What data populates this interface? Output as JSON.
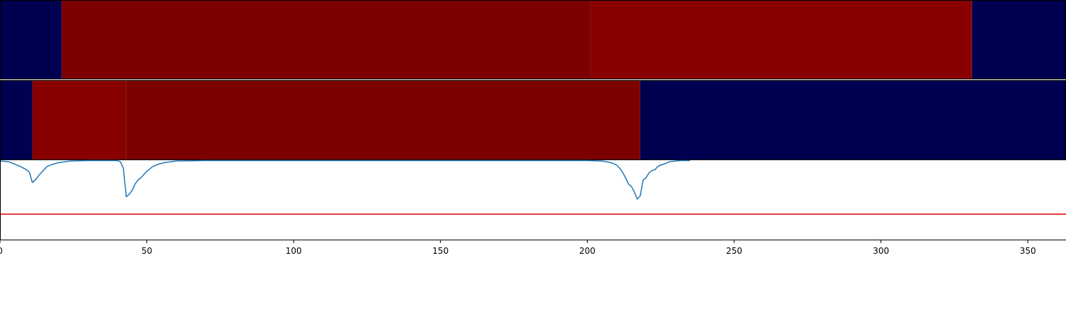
{
  "chart_data": [
    {
      "type": "heatmap",
      "xlim": [
        0,
        363
      ],
      "colors": {
        "low": "#000050",
        "high": "#880000",
        "mid": "#7c0000"
      },
      "segments": [
        {
          "x0": 0,
          "x1": 21,
          "color": "#000050"
        },
        {
          "x0": 21,
          "x1": 201,
          "color": "#7c0000"
        },
        {
          "x0": 201,
          "x1": 331,
          "color": "#880000"
        },
        {
          "x0": 331,
          "x1": 363,
          "color": "#000050"
        }
      ]
    },
    {
      "type": "heatmap",
      "xlim": [
        0,
        363
      ],
      "segments": [
        {
          "x0": 0,
          "x1": 11,
          "color": "#000050"
        },
        {
          "x0": 11,
          "x1": 43,
          "color": "#880000"
        },
        {
          "x0": 43,
          "x1": 218,
          "color": "#7c0000"
        },
        {
          "x0": 218,
          "x1": 363,
          "color": "#000050"
        }
      ]
    },
    {
      "type": "line",
      "xlim": [
        0,
        363
      ],
      "ylim": [
        -1.0,
        0.0
      ],
      "grid": false,
      "xticks": [
        0,
        50,
        100,
        150,
        200,
        250,
        300,
        350
      ],
      "xtick_labels": [
        "0",
        "50",
        "100",
        "150",
        "200",
        "250",
        "300",
        "350"
      ],
      "series": [
        {
          "color": "#1f77b4",
          "x": [
            0,
            3,
            5,
            7,
            9,
            10,
            11,
            12,
            13,
            14,
            15,
            16,
            18,
            20,
            24,
            30,
            40,
            41,
            42,
            43,
            44,
            45,
            46,
            47,
            48,
            49,
            50,
            51,
            52,
            54,
            56,
            60,
            70,
            100,
            150,
            170,
            200,
            205,
            208,
            210,
            211,
            212,
            213,
            214,
            215,
            216,
            217,
            218,
            219,
            220,
            221,
            222,
            223,
            224,
            225,
            226,
            228,
            230,
            232,
            235
          ],
          "y": [
            -0.01,
            -0.02,
            -0.05,
            -0.08,
            -0.12,
            -0.15,
            -0.28,
            -0.25,
            -0.2,
            -0.16,
            -0.12,
            -0.08,
            -0.05,
            -0.03,
            -0.01,
            -0.005,
            -0.005,
            -0.02,
            -0.1,
            -0.46,
            -0.43,
            -0.38,
            -0.3,
            -0.25,
            -0.22,
            -0.18,
            -0.14,
            -0.11,
            -0.08,
            -0.05,
            -0.03,
            -0.01,
            -0.005,
            -0.005,
            -0.005,
            -0.005,
            -0.005,
            -0.01,
            -0.03,
            -0.06,
            -0.1,
            -0.15,
            -0.22,
            -0.3,
            -0.33,
            -0.4,
            -0.49,
            -0.45,
            -0.25,
            -0.22,
            -0.16,
            -0.13,
            -0.12,
            -0.08,
            -0.06,
            -0.05,
            -0.02,
            -0.01,
            -0.005,
            -0.005
          ]
        }
      ],
      "hlines": [
        {
          "y": -0.68,
          "color": "#e00000"
        }
      ]
    }
  ]
}
